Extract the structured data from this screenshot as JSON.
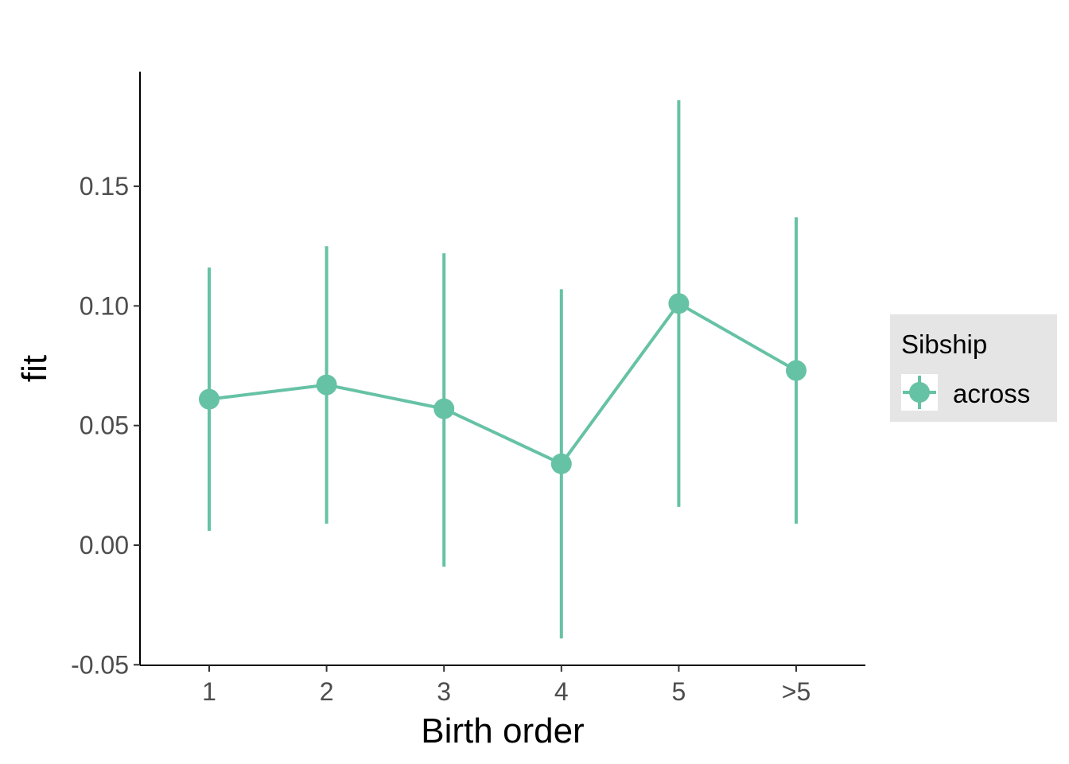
{
  "chart_data": {
    "type": "line",
    "title": "",
    "xlabel": "Birth order",
    "ylabel": "fit",
    "categories": [
      "1",
      "2",
      "3",
      "4",
      "5",
      ">5"
    ],
    "ylim": [
      -0.052,
      0.197
    ],
    "yticks": [
      -0.05,
      0.0,
      0.05,
      0.1,
      0.15
    ],
    "ytick_labels": [
      "-0.05",
      "0.00",
      "0.05",
      "0.10",
      "0.15"
    ],
    "grid": false,
    "legend": {
      "title": "Sibship",
      "placement": "right"
    },
    "series": [
      {
        "name": "across",
        "color": "#66c2a5",
        "values": [
          0.061,
          0.067,
          0.057,
          0.034,
          0.101,
          0.073
        ],
        "lower": [
          0.006,
          0.009,
          -0.009,
          -0.039,
          0.016,
          0.009
        ],
        "upper": [
          0.116,
          0.125,
          0.122,
          0.107,
          0.186,
          0.137
        ]
      }
    ]
  }
}
